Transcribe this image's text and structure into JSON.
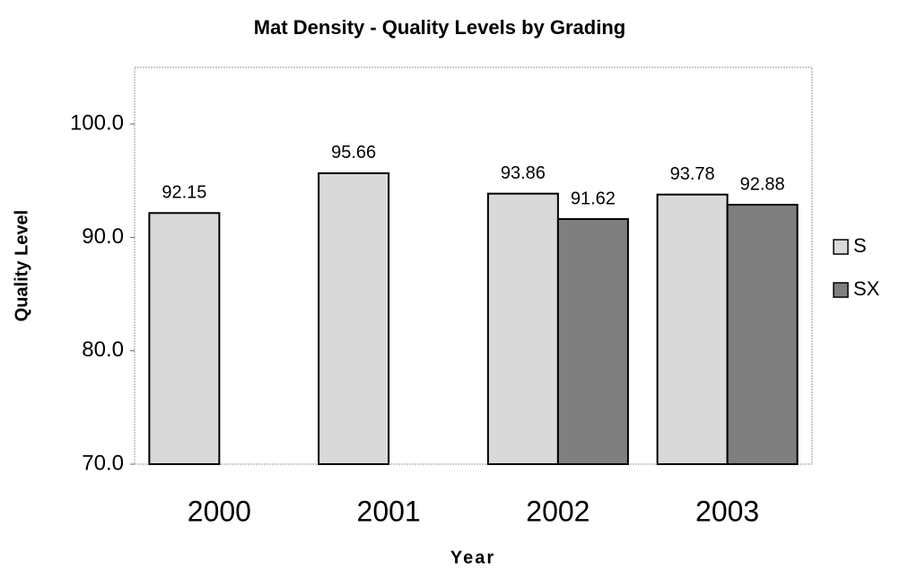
{
  "chart_data": {
    "type": "bar",
    "title": "Mat Density - Quality Levels by Grading",
    "x_label": "Year",
    "y_label": "Quality Level",
    "categories": [
      "2000",
      "2001",
      "2002",
      "2003"
    ],
    "series": [
      {
        "name": "S",
        "color": "#d9d9d9",
        "values": [
          92.15,
          95.66,
          93.86,
          93.78
        ]
      },
      {
        "name": "SX",
        "color": "#7f7f7f",
        "values": [
          null,
          null,
          91.62,
          92.88
        ]
      }
    ],
    "ylim": [
      70,
      105
    ],
    "yticks": [
      {
        "value": 70,
        "label": "70.0"
      },
      {
        "value": 80,
        "label": "80.0"
      },
      {
        "value": 90,
        "label": "90.0"
      },
      {
        "value": 100,
        "label": "100.0"
      }
    ],
    "grid": false,
    "legend": "right"
  }
}
